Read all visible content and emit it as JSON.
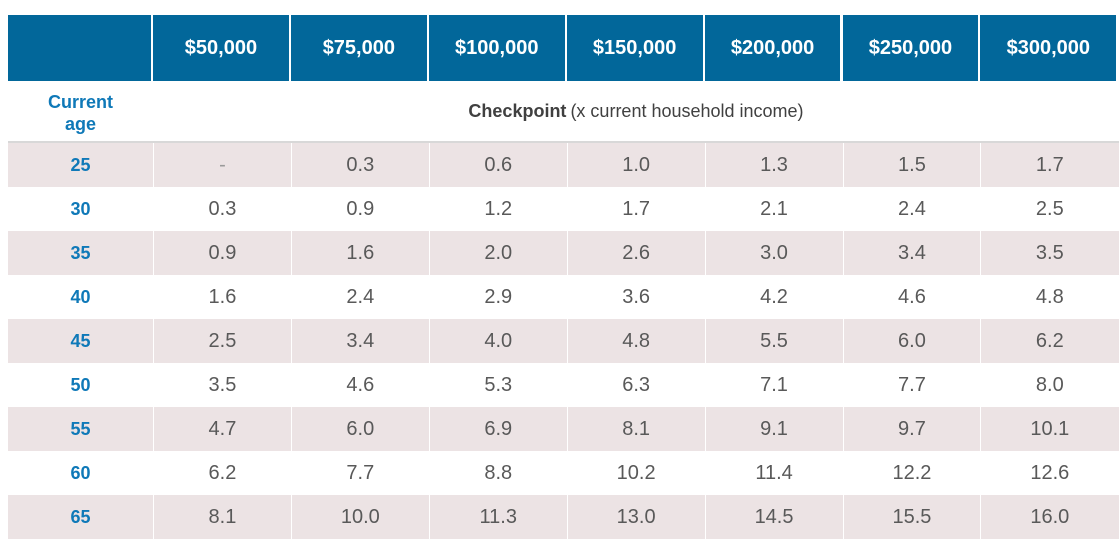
{
  "chart_data": {
    "type": "table",
    "header": {
      "incomes": [
        "$50,000",
        "$75,000",
        "$100,000",
        "$150,000",
        "$200,000",
        "$250,000",
        "$300,000"
      ]
    },
    "subheader": {
      "age_label_line1": "Current",
      "age_label_line2": "age",
      "checkpoint_bold": "Checkpoint",
      "checkpoint_rest": "(x current household income)"
    },
    "rows": [
      {
        "age": "25",
        "values": [
          "-",
          "0.3",
          "0.6",
          "1.0",
          "1.3",
          "1.5",
          "1.7"
        ]
      },
      {
        "age": "30",
        "values": [
          "0.3",
          "0.9",
          "1.2",
          "1.7",
          "2.1",
          "2.4",
          "2.5"
        ]
      },
      {
        "age": "35",
        "values": [
          "0.9",
          "1.6",
          "2.0",
          "2.6",
          "3.0",
          "3.4",
          "3.5"
        ]
      },
      {
        "age": "40",
        "values": [
          "1.6",
          "2.4",
          "2.9",
          "3.6",
          "4.2",
          "4.6",
          "4.8"
        ]
      },
      {
        "age": "45",
        "values": [
          "2.5",
          "3.4",
          "4.0",
          "4.8",
          "5.5",
          "6.0",
          "6.2"
        ]
      },
      {
        "age": "50",
        "values": [
          "3.5",
          "4.6",
          "5.3",
          "6.3",
          "7.1",
          "7.7",
          "8.0"
        ]
      },
      {
        "age": "55",
        "values": [
          "4.7",
          "6.0",
          "6.9",
          "8.1",
          "9.1",
          "9.7",
          "10.1"
        ]
      },
      {
        "age": "60",
        "values": [
          "6.2",
          "7.7",
          "8.8",
          "10.2",
          "11.4",
          "12.2",
          "12.6"
        ]
      },
      {
        "age": "65",
        "values": [
          "8.1",
          "10.0",
          "11.3",
          "13.0",
          "14.5",
          "15.5",
          "16.0"
        ]
      }
    ],
    "colors": {
      "header_bg": "#02679a",
      "header_text": "#ffffff",
      "age_text": "#0f79b8",
      "value_text": "#595959",
      "shaded_row": "#ece3e4"
    }
  }
}
